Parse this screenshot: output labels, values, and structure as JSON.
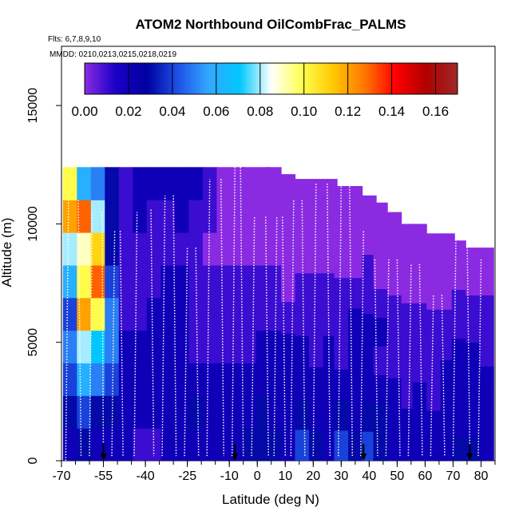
{
  "chart_data": {
    "type": "heatmap",
    "title": "ATOM2 Northbound OilCombFrac_PALMS",
    "flights_note": "Flts: 6,7,8,9,10",
    "dates_note": "MMDD: 0210,0213,0215,0218,0219",
    "xlabel": "Latitude (deg N)",
    "ylabel": "Altitude (m)",
    "xlim": [
      -70,
      85
    ],
    "ylim": [
      0,
      17500
    ],
    "x_ticks": [
      -70,
      -55,
      -40,
      -25,
      -10,
      0,
      10,
      20,
      30,
      40,
      50,
      60,
      70,
      80
    ],
    "x_tick_labels": [
      "-70",
      "-55",
      "-40",
      "-25",
      "-10",
      "0",
      "10",
      "20",
      "30",
      "40",
      "50",
      "60",
      "70",
      "80"
    ],
    "x_minor_step": 5,
    "y_ticks": [
      0,
      5000,
      10000,
      15000
    ],
    "y_tick_labels": [
      "0",
      "5000",
      "10000",
      "15000"
    ],
    "colorbar": {
      "min": 0.0,
      "max": 0.17,
      "ticks": [
        0.0,
        0.02,
        0.04,
        0.06,
        0.08,
        0.1,
        0.12,
        0.14,
        0.16
      ],
      "tick_labels": [
        "0.00",
        "0.02",
        "0.04",
        "0.06",
        "0.08",
        "0.10",
        "0.12",
        "0.14",
        "0.16"
      ]
    },
    "colors": [
      "#8a2be2",
      "#1a00c8",
      "#0000a0",
      "#1e50e6",
      "#32a8ff",
      "#00c8ff",
      "#ffffff",
      "#ffff50",
      "#ffc800",
      "#ff7800",
      "#ff0000",
      "#b00000",
      "#a02828"
    ],
    "column_tops": [
      [
        -67,
        12400
      ],
      [
        -62,
        12400
      ],
      [
        -57,
        12400
      ],
      [
        -52,
        12400
      ],
      [
        -47,
        12400
      ],
      [
        -42,
        12400
      ],
      [
        -37,
        12400
      ],
      [
        -32,
        12400
      ],
      [
        -27,
        12400
      ],
      [
        -22,
        12400
      ],
      [
        -17,
        12400
      ],
      [
        -12,
        12400
      ],
      [
        -7,
        12400
      ],
      [
        -3,
        12400
      ],
      [
        2,
        12400
      ],
      [
        6,
        12400
      ],
      [
        11,
        12100
      ],
      [
        16,
        11900
      ],
      [
        21,
        11900
      ],
      [
        26,
        11900
      ],
      [
        30,
        11600
      ],
      [
        35,
        11600
      ],
      [
        40,
        11200
      ],
      [
        44,
        10900
      ],
      [
        49,
        10500
      ],
      [
        54,
        10000
      ],
      [
        58,
        10000
      ],
      [
        63,
        9600
      ],
      [
        68,
        9600
      ],
      [
        72,
        9300
      ],
      [
        77,
        9000
      ],
      [
        82,
        9000
      ]
    ],
    "column_values": [
      [
        -67,
        [
          0.02,
          0.03,
          0.04,
          0.05,
          0.04,
          0.06,
          0.08,
          0.12,
          0.1
        ]
      ],
      [
        -62,
        [
          0.03,
          0.04,
          0.06,
          0.08,
          0.12,
          0.1,
          0.09,
          0.13,
          0.06
        ]
      ],
      [
        -57,
        [
          0.02,
          0.03,
          0.05,
          0.07,
          0.1,
          0.13,
          0.11,
          0.08,
          0.05
        ]
      ],
      [
        -52,
        [
          0.02,
          0.03,
          0.04,
          0.05,
          0.05,
          0.04,
          0.03,
          0.03,
          0.03
        ]
      ],
      [
        -47,
        [
          0.02,
          0.02,
          0.02,
          0.02,
          0.01,
          0.01,
          0.01,
          0.01,
          0.01
        ]
      ],
      [
        -42,
        [
          0.01,
          0.02,
          0.02,
          0.02,
          0.01,
          0.01,
          0.01,
          0.02,
          0.02
        ]
      ],
      [
        -37,
        [
          0.01,
          0.02,
          0.02,
          0.02,
          0.02,
          0.01,
          0.01,
          0.01,
          0.02
        ]
      ],
      [
        -32,
        [
          0.02,
          0.02,
          0.02,
          0.02,
          0.02,
          0.02,
          0.01,
          0.01,
          0.02
        ]
      ],
      [
        -27,
        [
          0.02,
          0.02,
          0.02,
          0.02,
          0.02,
          0.02,
          0.01,
          0.02,
          0.02
        ]
      ],
      [
        -22,
        [
          0.02,
          0.03,
          0.02,
          0.01,
          0.01,
          0.01,
          0.01,
          0.01,
          0.02
        ]
      ],
      [
        -17,
        [
          0.02,
          0.02,
          0.02,
          0.01,
          0.01,
          0.01,
          0.0,
          0.01,
          0.01
        ]
      ],
      [
        -12,
        [
          0.02,
          0.02,
          0.02,
          0.01,
          0.01,
          0.01,
          0.0,
          0.0,
          0.0
        ]
      ],
      [
        -7,
        [
          0.02,
          0.02,
          0.02,
          0.01,
          0.01,
          0.01,
          0.0,
          0.0,
          0.0
        ]
      ],
      [
        -3,
        [
          0.03,
          0.02,
          0.02,
          0.01,
          0.01,
          0.01,
          0.0,
          0.0,
          0.0
        ]
      ],
      [
        2,
        [
          0.03,
          0.03,
          0.02,
          0.02,
          0.01,
          0.01,
          0.0,
          0.0,
          0.0
        ]
      ],
      [
        6,
        [
          0.03,
          0.02,
          0.02,
          0.02,
          0.01,
          0.01,
          0.0,
          0.0,
          0.0
        ]
      ],
      [
        11,
        [
          0.02,
          0.02,
          0.02,
          0.02,
          0.01,
          0.0,
          0.0,
          0.0,
          0.0
        ]
      ],
      [
        16,
        [
          0.04,
          0.03,
          0.02,
          0.02,
          0.01,
          0.01,
          0.0,
          0.0,
          0.0
        ]
      ],
      [
        21,
        [
          0.03,
          0.02,
          0.02,
          0.01,
          0.01,
          0.01,
          0.0,
          0.0,
          0.0
        ]
      ],
      [
        26,
        [
          0.02,
          0.02,
          0.02,
          0.02,
          0.01,
          0.01,
          0.0,
          0.0,
          0.0
        ]
      ],
      [
        30,
        [
          0.04,
          0.03,
          0.02,
          0.01,
          0.01,
          0.01,
          0.0,
          0.0,
          0.0
        ]
      ],
      [
        35,
        [
          0.03,
          0.02,
          0.02,
          0.02,
          0.02,
          0.01,
          0.0,
          0.0,
          0.0
        ]
      ],
      [
        40,
        [
          0.04,
          0.03,
          0.02,
          0.02,
          0.02,
          0.01,
          0.01,
          0.0,
          0.0
        ]
      ],
      [
        44,
        [
          0.03,
          0.03,
          0.02,
          0.01,
          0.02,
          0.01,
          0.0,
          0.0,
          0.0
        ]
      ],
      [
        49,
        [
          0.02,
          0.02,
          0.02,
          0.01,
          0.01,
          0.01,
          0.0,
          0.0,
          0.0
        ]
      ],
      [
        54,
        [
          0.02,
          0.02,
          0.01,
          0.01,
          0.01,
          0.01,
          0.0,
          0.0,
          0.0
        ]
      ],
      [
        58,
        [
          0.02,
          0.02,
          0.02,
          0.01,
          0.01,
          0.01,
          0.0,
          0.0,
          0.0
        ]
      ],
      [
        63,
        [
          0.02,
          0.02,
          0.01,
          0.01,
          0.01,
          0.01,
          0.0,
          0.0,
          0.0
        ]
      ],
      [
        68,
        [
          0.02,
          0.02,
          0.02,
          0.02,
          0.01,
          0.01,
          0.0,
          0.0,
          0.0
        ]
      ],
      [
        72,
        [
          0.03,
          0.02,
          0.02,
          0.02,
          0.02,
          0.01,
          0.01,
          0.0,
          0.0
        ]
      ],
      [
        77,
        [
          0.03,
          0.02,
          0.02,
          0.02,
          0.02,
          0.01,
          0.01,
          0.0,
          0.0
        ]
      ],
      [
        82,
        [
          0.02,
          0.02,
          0.02,
          0.02,
          0.01,
          0.01,
          0.01,
          0.0,
          0.0
        ]
      ]
    ],
    "profiles": [
      [
        -68.5,
        0,
        -67.5,
        11000
      ],
      [
        -64,
        11000,
        -63,
        200
      ],
      [
        -60,
        200,
        -59,
        10500
      ],
      [
        -55.5,
        10500,
        -55,
        200
      ],
      [
        -52,
        200,
        -51,
        9700
      ],
      [
        -49,
        9700,
        -48,
        200
      ],
      [
        -44,
        200,
        -43,
        10500
      ],
      [
        -38,
        10600,
        -37,
        200
      ],
      [
        -34,
        200,
        -33,
        11200
      ],
      [
        -30,
        11200,
        -29,
        200
      ],
      [
        -26,
        200,
        -25,
        9000
      ],
      [
        -22,
        9000,
        -21,
        200
      ],
      [
        -18,
        200,
        -17,
        11900
      ],
      [
        -13,
        11900,
        -12,
        200
      ],
      [
        -9,
        200,
        -8,
        12400
      ],
      [
        -6,
        12400,
        -5,
        200
      ],
      [
        -2,
        200,
        -1,
        10300
      ],
      [
        3,
        10300,
        4,
        200
      ],
      [
        6,
        200,
        7,
        10300
      ],
      [
        9,
        10300,
        10,
        200
      ],
      [
        12,
        200,
        13,
        11000
      ],
      [
        16,
        11000,
        17,
        200
      ],
      [
        20,
        200,
        21,
        11700
      ],
      [
        25,
        11700,
        26,
        200
      ],
      [
        29,
        200,
        30,
        11700
      ],
      [
        33,
        11700,
        34,
        200
      ],
      [
        37,
        200,
        38,
        9700
      ],
      [
        42,
        8500,
        43,
        200
      ],
      [
        46,
        200,
        47,
        8500
      ],
      [
        50,
        8500,
        51,
        200
      ],
      [
        54,
        200,
        55,
        8300
      ],
      [
        58,
        8300,
        59,
        200
      ],
      [
        62,
        200,
        63,
        7000
      ],
      [
        66,
        7000,
        67,
        200
      ],
      [
        70,
        200,
        71,
        9500
      ],
      [
        75,
        9500,
        76,
        200
      ],
      [
        79,
        200,
        80,
        8500
      ]
    ],
    "arrows": [
      -55,
      -8,
      38,
      76
    ]
  }
}
